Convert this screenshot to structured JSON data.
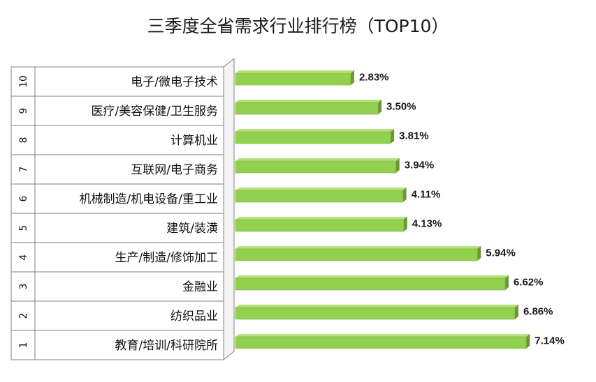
{
  "chart_data": {
    "type": "bar",
    "orientation": "horizontal",
    "title": "三季度全省需求行业排行榜（TOP10）",
    "ranks": [
      "1",
      "2",
      "3",
      "4",
      "5",
      "6",
      "7",
      "8",
      "9",
      "10"
    ],
    "categories": [
      "教育/培训/科研院所",
      "纺织品业",
      "金融业",
      "生产/制造/修饰加工",
      "建筑/装潢",
      "机械制造/机电设备/重工业",
      "互联网/电子商务",
      "计算机业",
      "医疗/美容保健/卫生服务",
      "电子/微电子技术"
    ],
    "values": [
      7.14,
      6.86,
      6.62,
      5.94,
      4.13,
      4.11,
      3.94,
      3.81,
      3.5,
      2.83
    ],
    "value_labels": [
      "7.14%",
      "6.86%",
      "6.62%",
      "5.94%",
      "4.13%",
      "4.11%",
      "3.94%",
      "3.81%",
      "3.50%",
      "2.83%"
    ],
    "xlim": [
      0,
      7.8
    ],
    "bar_color": "#92d050",
    "bar_side_color": "#6a9a2c",
    "grid": false,
    "legend": "none"
  }
}
